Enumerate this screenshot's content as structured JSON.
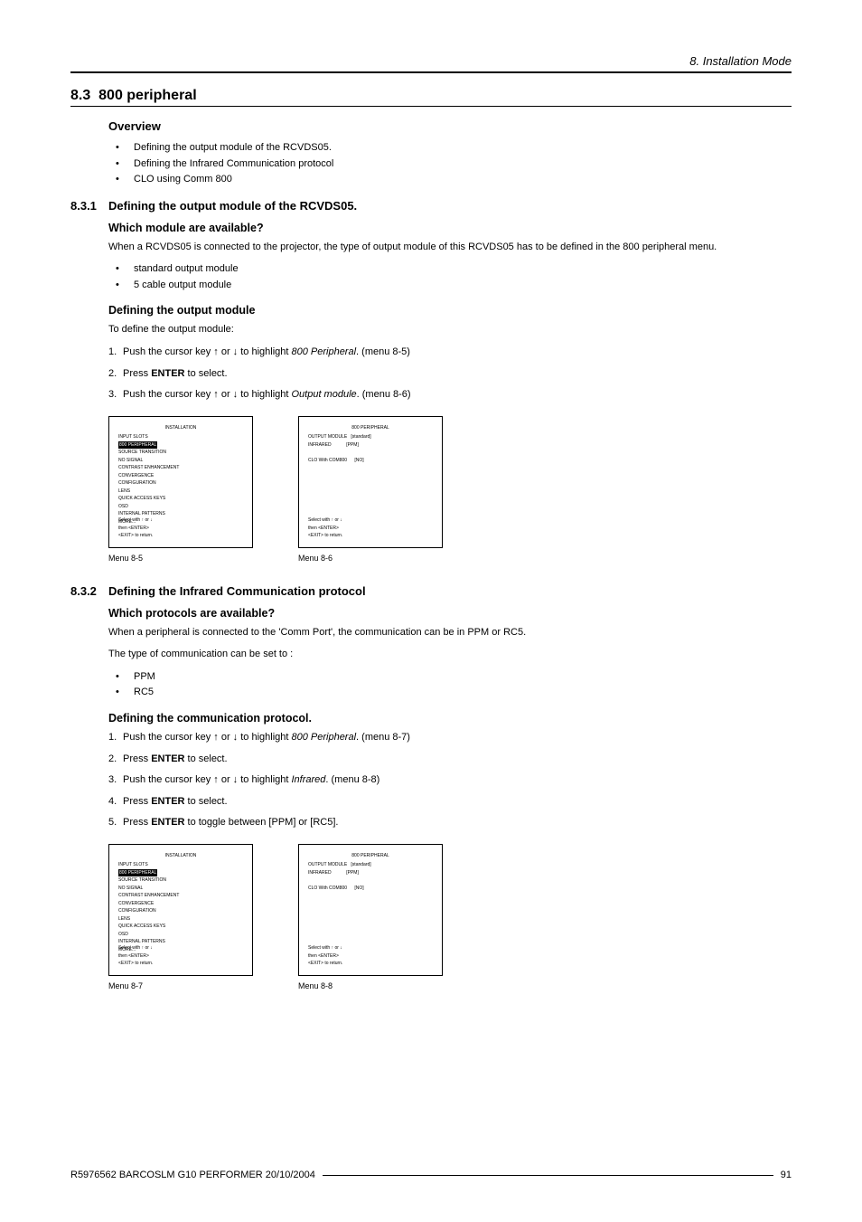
{
  "page": {
    "chapter_header": "8.  Installation Mode",
    "section_number": "8.3",
    "section_title": "800 peripheral",
    "footer_left": "R5976562   BARCOSLM G10 PERFORMER   20/10/2004",
    "footer_page": "91"
  },
  "overview": {
    "heading": "Overview",
    "items": [
      "Defining the output module of the RCVDS05.",
      "Defining the Infrared Communication protocol",
      "CLO using Comm 800"
    ]
  },
  "sec_831": {
    "num": "8.3.1",
    "title": "Defining the output module of the RCVDS05.",
    "q_heading": "Which module are available?",
    "intro": "When a RCVDS05 is connected to the projector, the type of output module of this RCVDS05 has to be defined in the 800 peripheral menu.",
    "modules": [
      "standard output module",
      "5 cable output module"
    ],
    "def_heading": "Defining the output module",
    "def_intro": "To define the output module:",
    "step1_a": "Push the cursor key ↑ or ↓ to highlight ",
    "step1_b": "800 Peripheral",
    "step1_c": ".  (menu 8-5)",
    "step2_a": "Press ",
    "step2_b": "ENTER",
    "step2_c": " to select.",
    "step3_a": "Push the cursor key ↑ or ↓ to highlight ",
    "step3_b": "Output module",
    "step3_c": ".  (menu 8-6)",
    "menu_a": {
      "title": "INSTALLATION",
      "lines": [
        "INPUT SLOTS",
        "800 PERIPHERAL",
        "SOURCE TRANSITION",
        "NO SIGNAL",
        "CONTRAST ENHANCEMENT",
        "CONVERGENCE",
        "CONFIGURATION",
        "LENS",
        "QUICK ACCESS KEYS",
        "OSD",
        "INTERNAL PATTERNS",
        "MORE..."
      ],
      "highlight_index": 1,
      "footer": "Select with ↑ or ↓\nthen <ENTER>\n<EXIT> to return.",
      "caption": "Menu 8-5"
    },
    "menu_b": {
      "title": "800 PERIPHERAL",
      "lines": [
        "OUTPUT MODULE   [standard]",
        "INFRARED            [PPM]",
        "",
        "CLO With COM800      [NO]"
      ],
      "highlight_index": -1,
      "footer": "Select with ↑ or ↓\nthen <ENTER>\n<EXIT> to return.",
      "caption": "Menu 8-6"
    }
  },
  "sec_832": {
    "num": "8.3.2",
    "title": "Defining the Infrared Communication protocol",
    "q_heading": "Which protocols are available?",
    "intro": "When a peripheral is connected to the 'Comm Port', the communication can be in PPM or RC5.",
    "intro2": "The type of communication can be set to :",
    "protocols": [
      "PPM",
      "RC5"
    ],
    "def_heading": "Defining the communication protocol.",
    "step1_a": "Push the cursor key ↑ or ↓ to highlight ",
    "step1_b": "800 Peripheral",
    "step1_c": ".  (menu 8-7)",
    "step2_a": "Press ",
    "step2_b": "ENTER",
    "step2_c": " to select.",
    "step3_a": "Push the cursor key ↑ or ↓ to highlight ",
    "step3_b": "Infrared",
    "step3_c": ".  (menu 8-8)",
    "step4_a": "Press ",
    "step4_b": "ENTER",
    "step4_c": " to select.",
    "step5_a": "Press ",
    "step5_b": "ENTER",
    "step5_c": " to toggle between [PPM] or [RC5].",
    "menu_a": {
      "title": "INSTALLATION",
      "lines": [
        "INPUT SLOTS",
        "800 PERIPHERAL",
        "SOURCE TRANSITION",
        "NO SIGNAL",
        "CONTRAST ENHANCEMENT",
        "CONVERGENCE",
        "CONFIGURATION",
        "LENS",
        "QUICK ACCESS KEYS",
        "OSD",
        "INTERNAL PATTERNS",
        "MORE..."
      ],
      "highlight_index": 1,
      "footer": "Select with ↑ or ↓\nthen <ENTER>\n<EXIT> to return.",
      "caption": "Menu 8-7"
    },
    "menu_b": {
      "title": "800 PERIPHERAL",
      "lines": [
        "OUTPUT MODULE   [standard]",
        "INFRARED            [PPM]",
        "",
        "CLO With COM800      [NO]"
      ],
      "highlight_index": -1,
      "footer": "Select with ↑ or ↓\nthen <ENTER>\n<EXIT> to return.",
      "caption": "Menu 8-8"
    }
  },
  "colors": {
    "text": "#000000",
    "background": "#ffffff",
    "highlight_bg": "#000000",
    "highlight_fg": "#ffffff"
  }
}
